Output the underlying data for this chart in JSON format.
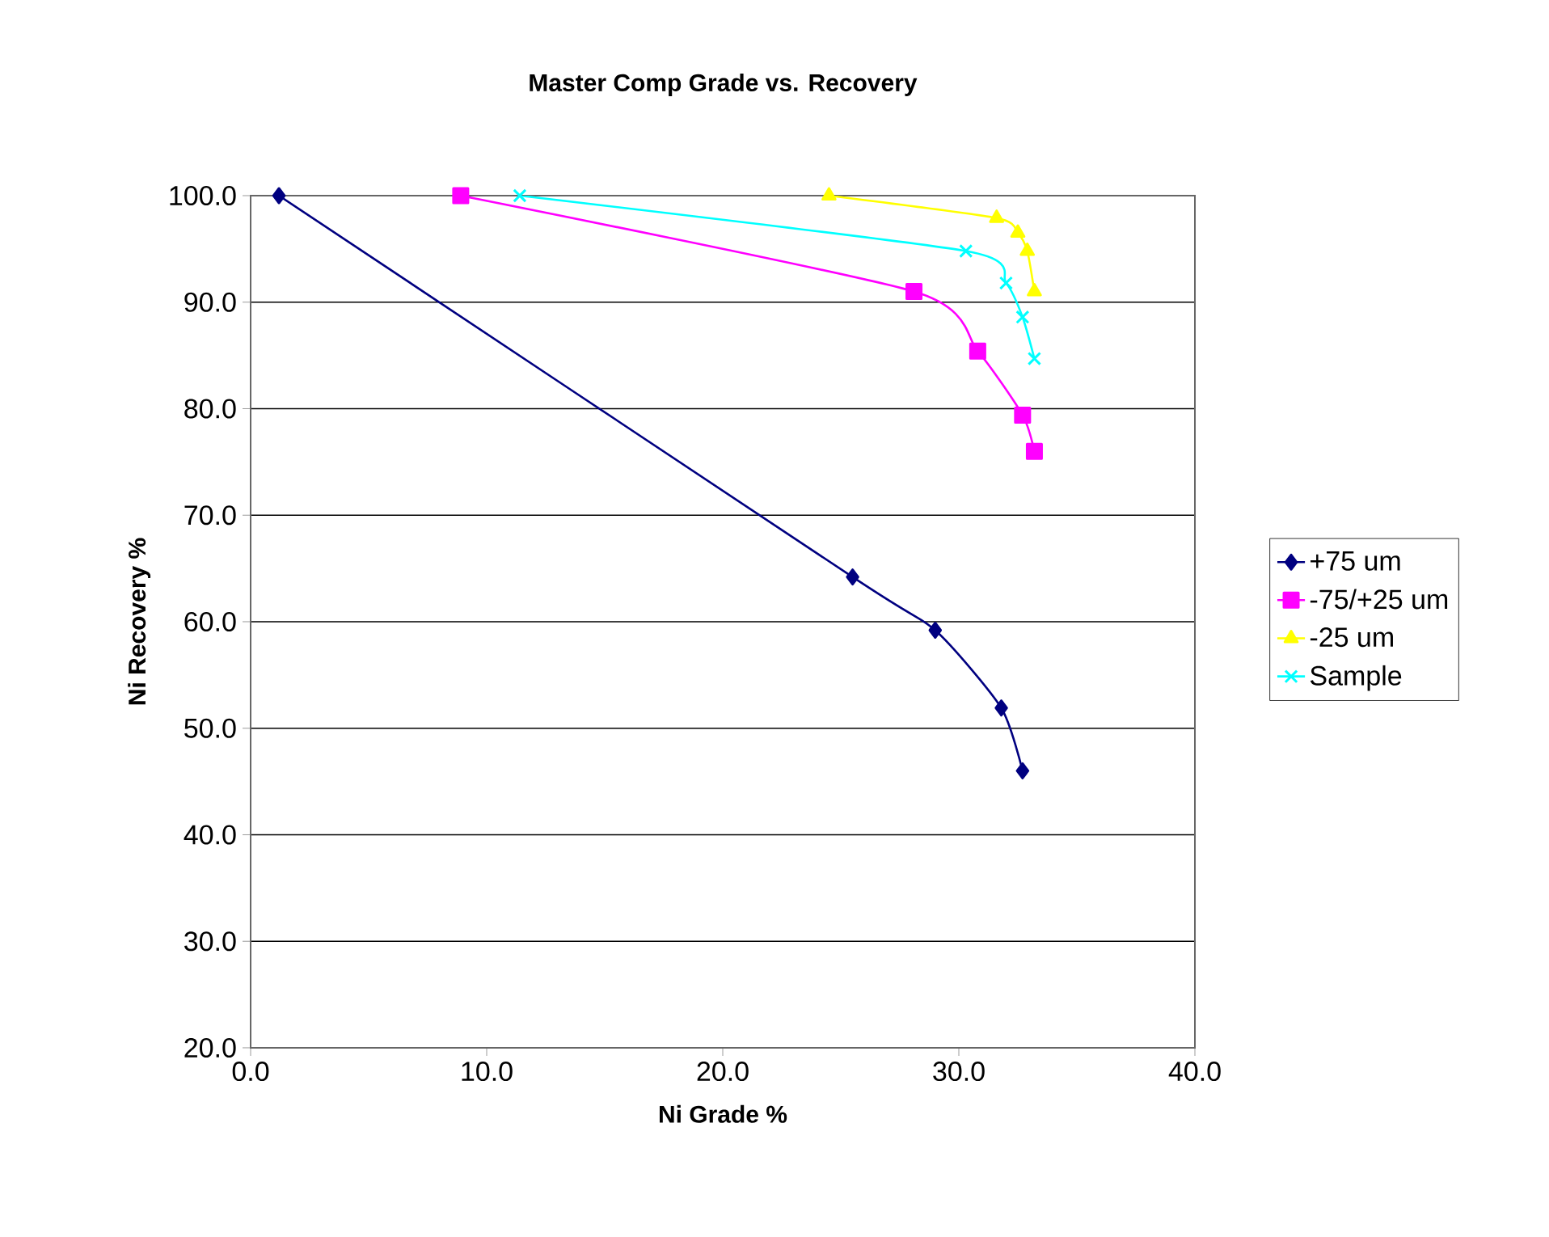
{
  "chart_data": {
    "type": "line",
    "title": "Master Comp Grade vs. Recovery",
    "xlabel": "Ni Grade %",
    "ylabel": "Ni Recovery %",
    "xlim": [
      0,
      40
    ],
    "ylim": [
      20,
      100
    ],
    "xticks": [
      {
        "value": 0,
        "label": "0.0"
      },
      {
        "value": 10,
        "label": "10.0"
      },
      {
        "value": 20,
        "label": "20.0"
      },
      {
        "value": 30,
        "label": "30.0"
      },
      {
        "value": 40,
        "label": "40.0"
      }
    ],
    "yticks": [
      {
        "value": 20,
        "label": "20.0"
      },
      {
        "value": 30,
        "label": "30.0"
      },
      {
        "value": 40,
        "label": "40.0"
      },
      {
        "value": 50,
        "label": "50.0"
      },
      {
        "value": 60,
        "label": "60.0"
      },
      {
        "value": 70,
        "label": "70.0"
      },
      {
        "value": 80,
        "label": "80.0"
      },
      {
        "value": 90,
        "label": "90.0"
      },
      {
        "value": 100,
        "label": "100.0"
      }
    ],
    "grid": "y",
    "legend": "right",
    "line_style": "solid",
    "series": [
      {
        "name": "+75 um",
        "color": "#000080",
        "marker": "diamond",
        "x": [
          1.2,
          25.5,
          29.0,
          31.8,
          32.7
        ],
        "values": [
          100,
          64.2,
          59.2,
          51.9,
          46.0
        ]
      },
      {
        "name": "-75/+25 um",
        "color": "#ff00ff",
        "marker": "square",
        "x": [
          8.9,
          28.1,
          30.8,
          32.7,
          33.2
        ],
        "values": [
          100,
          91.0,
          85.4,
          79.4,
          76.0
        ]
      },
      {
        "name": "-25 um",
        "color": "#ffff00",
        "marker": "triangle",
        "x": [
          24.5,
          31.6,
          32.5,
          32.9,
          33.2
        ],
        "values": [
          100,
          97.9,
          96.5,
          94.8,
          91.0
        ]
      },
      {
        "name": "Sample",
        "color": "#00ffff",
        "marker": "cross",
        "x": [
          11.4,
          30.3,
          32.0,
          32.7,
          33.2
        ],
        "values": [
          100,
          94.8,
          91.8,
          88.6,
          84.7
        ]
      }
    ]
  }
}
